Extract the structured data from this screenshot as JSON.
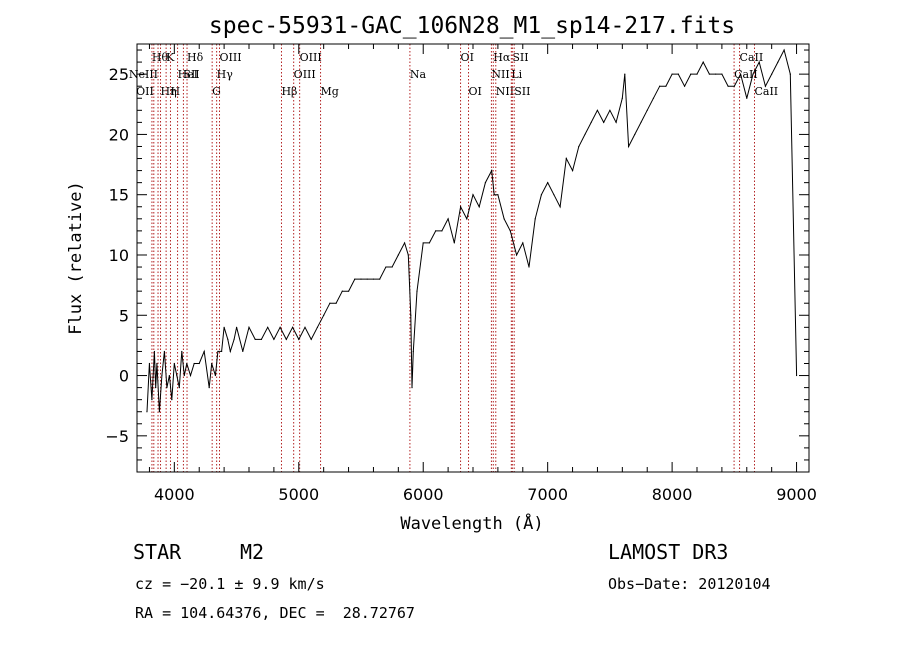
{
  "chart_data": {
    "type": "line",
    "title": "spec-55931-GAC_106N28_M1_sp14-217.fits",
    "xlabel": "Wavelength (Å)",
    "ylabel": "Flux (relative)",
    "xlim": [
      3700,
      9100
    ],
    "ylim": [
      -8,
      27.5
    ],
    "xticks": [
      4000,
      5000,
      6000,
      7000,
      8000,
      9000
    ],
    "yticks": [
      -5,
      0,
      5,
      10,
      15,
      20,
      25
    ],
    "series": [
      {
        "name": "spectrum",
        "x": [
          3780,
          3800,
          3820,
          3840,
          3850,
          3860,
          3880,
          3900,
          3920,
          3940,
          3960,
          3980,
          4000,
          4020,
          4040,
          4060,
          4080,
          4100,
          4130,
          4160,
          4200,
          4240,
          4280,
          4300,
          4330,
          4350,
          4380,
          4400,
          4430,
          4450,
          4480,
          4500,
          4550,
          4600,
          4650,
          4700,
          4750,
          4800,
          4850,
          4900,
          4950,
          5000,
          5050,
          5100,
          5150,
          5200,
          5250,
          5300,
          5350,
          5400,
          5450,
          5500,
          5550,
          5600,
          5650,
          5700,
          5750,
          5800,
          5850,
          5880,
          5900,
          5910,
          5920,
          5950,
          6000,
          6050,
          6100,
          6150,
          6200,
          6250,
          6300,
          6350,
          6400,
          6450,
          6500,
          6550,
          6570,
          6600,
          6650,
          6700,
          6750,
          6800,
          6850,
          6900,
          6950,
          7000,
          7050,
          7100,
          7150,
          7200,
          7250,
          7300,
          7350,
          7400,
          7450,
          7500,
          7550,
          7600,
          7620,
          7650,
          7700,
          7750,
          7800,
          7850,
          7900,
          7950,
          8000,
          8050,
          8100,
          8150,
          8200,
          8250,
          8300,
          8350,
          8400,
          8450,
          8500,
          8550,
          8600,
          8650,
          8700,
          8750,
          8800,
          8850,
          8900,
          8950,
          9000
        ],
        "values": [
          -3,
          1,
          -2,
          2,
          -1,
          1,
          -3,
          0,
          2,
          -1,
          0,
          -2,
          1,
          0,
          -1,
          2,
          0,
          1,
          0,
          1,
          1,
          2,
          -1,
          1,
          0,
          2,
          2,
          4,
          3,
          2,
          3,
          4,
          2,
          4,
          3,
          3,
          4,
          3,
          4,
          3,
          4,
          3,
          4,
          3,
          4,
          5,
          6,
          6,
          7,
          7,
          8,
          8,
          8,
          8,
          8,
          9,
          9,
          10,
          11,
          10,
          5,
          -1,
          2,
          7,
          11,
          11,
          12,
          12,
          13,
          11,
          14,
          13,
          15,
          14,
          16,
          17,
          15,
          15,
          13,
          12,
          10,
          11,
          9,
          13,
          15,
          16,
          15,
          14,
          18,
          17,
          19,
          20,
          21,
          22,
          21,
          22,
          21,
          23,
          25,
          19,
          20,
          21,
          22,
          23,
          24,
          24,
          25,
          25,
          24,
          25,
          25,
          26,
          25,
          25,
          25,
          24,
          24,
          25,
          23,
          25,
          26,
          24,
          25,
          26,
          27,
          25,
          0
        ]
      }
    ],
    "lines": [
      {
        "x": 3820,
        "label": "Hθ",
        "row": 0,
        "align": "center"
      },
      {
        "x": 3835,
        "label": "OII",
        "row": 2,
        "align": "end"
      },
      {
        "x": 3869,
        "label": "NeIII",
        "row": 1,
        "align": "end"
      },
      {
        "x": 3889,
        "label": "Hη",
        "row": 2,
        "align": "start"
      },
      {
        "x": 3934,
        "label": "K",
        "row": 0,
        "align": "center"
      },
      {
        "x": 3969,
        "label": "H",
        "row": 2,
        "align": "center"
      },
      {
        "x": 4026,
        "label": "HeI",
        "row": 1,
        "align": "center"
      },
      {
        "x": 4073,
        "label": "SII",
        "row": 1,
        "align": "start"
      },
      {
        "x": 4102,
        "label": "Hδ",
        "row": 0,
        "align": "center"
      },
      {
        "x": 4304,
        "label": "G",
        "row": 2,
        "align": "center"
      },
      {
        "x": 4340,
        "label": "Hγ",
        "row": 1,
        "align": "center"
      },
      {
        "x": 4363,
        "label": "OIII",
        "row": 0,
        "align": "center"
      },
      {
        "x": 4861,
        "label": "Hβ",
        "row": 2,
        "align": "center"
      },
      {
        "x": 4959,
        "label": "OIII",
        "row": 1,
        "align": "center"
      },
      {
        "x": 5007,
        "label": "OIII",
        "row": 0,
        "align": "center"
      },
      {
        "x": 5175,
        "label": "Mg",
        "row": 2,
        "align": "center"
      },
      {
        "x": 5893,
        "label": "Na",
        "row": 1,
        "align": "center"
      },
      {
        "x": 6300,
        "label": "OI",
        "row": 0,
        "align": "center"
      },
      {
        "x": 6364,
        "label": "OI",
        "row": 2,
        "align": "center"
      },
      {
        "x": 6548,
        "label": "NII",
        "row": 1,
        "align": "center"
      },
      {
        "x": 6563,
        "label": "Hα",
        "row": 0,
        "align": "center"
      },
      {
        "x": 6583,
        "label": "NII",
        "row": 2,
        "align": "center"
      },
      {
        "x": 6708,
        "label": "Li",
        "row": 1,
        "align": "center"
      },
      {
        "x": 6716,
        "label": "SII",
        "row": 0,
        "align": "center"
      },
      {
        "x": 6731,
        "label": "SII",
        "row": 2,
        "align": "center"
      },
      {
        "x": 8498,
        "label": "CaII",
        "row": 1,
        "align": "center"
      },
      {
        "x": 8542,
        "label": "CaII",
        "row": 0,
        "align": "center"
      },
      {
        "x": 8662,
        "label": "CaII",
        "row": 2,
        "align": "center"
      }
    ]
  },
  "info": {
    "object_type": "STAR",
    "subclass": "M2",
    "survey": "LAMOST DR3",
    "cz": "cz = −20.1 ± 9.9 km/s",
    "obs_date": "Obs−Date: 20120104",
    "coords": "RA = 104.64376, DEC =  28.72767"
  },
  "colors": {
    "line_marker": "#b22222",
    "spectrum": "#000000"
  }
}
